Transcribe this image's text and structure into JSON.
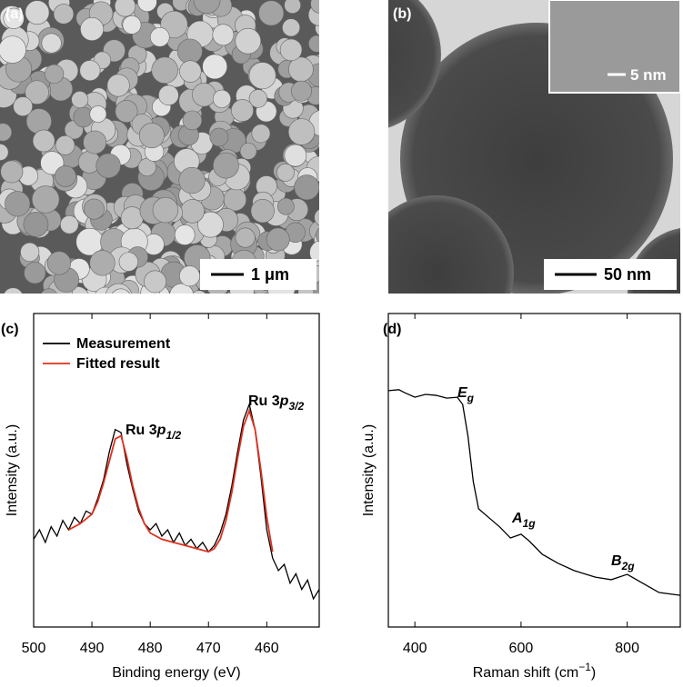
{
  "panels": [
    {
      "label": "(a)",
      "scale_bar": "1 μm"
    },
    {
      "label": "(b)",
      "scale_bar": "50 nm",
      "inset_scale_bar": "5 nm"
    }
  ],
  "chart_data": [
    {
      "type": "line",
      "panel_label": "(c)",
      "xlabel": "Binding energy (eV)",
      "ylabel": "Intensity (a.u.)",
      "xlim": [
        500,
        451
      ],
      "xticks": [
        500,
        490,
        480,
        470,
        460
      ],
      "ylim": [
        0,
        100
      ],
      "legend": "upper-left",
      "series": [
        {
          "name": "Measurement",
          "color": "#000000",
          "x": [
            500,
            499,
            498,
            497,
            496,
            495,
            494,
            493,
            492,
            491,
            490,
            489,
            488,
            487,
            486,
            485,
            484,
            483,
            482,
            481,
            480,
            479,
            478,
            477,
            476,
            475,
            474,
            473,
            472,
            471,
            470,
            469,
            468,
            467,
            466,
            465,
            464,
            463,
            462,
            461,
            460,
            459,
            458,
            457,
            456,
            455,
            454,
            453,
            452,
            451
          ],
          "values": [
            28,
            31,
            27,
            32,
            29,
            34,
            31,
            35,
            33,
            37,
            36,
            41,
            47,
            56,
            63,
            62,
            52,
            44,
            37,
            33,
            31,
            33,
            29,
            31,
            27,
            30,
            26,
            28,
            25,
            27,
            24,
            26,
            30,
            36,
            45,
            56,
            66,
            71,
            63,
            48,
            31,
            22,
            18,
            20,
            14,
            17,
            12,
            15,
            9,
            12
          ]
        },
        {
          "name": "Fitted result",
          "color": "#e0301e",
          "x": [
            494,
            492,
            490,
            489,
            488,
            487,
            486,
            485,
            484,
            483,
            482,
            481,
            480,
            478,
            476,
            474,
            472,
            470,
            469,
            468,
            467,
            466,
            465,
            464,
            463,
            462,
            461,
            460,
            459
          ],
          "values": [
            31,
            33,
            36,
            40,
            46,
            53,
            60,
            61,
            54,
            45,
            38,
            33,
            30,
            28,
            27,
            26,
            25,
            24,
            25,
            28,
            34,
            43,
            54,
            64,
            69,
            63,
            50,
            35,
            24
          ]
        }
      ],
      "annotations": [
        {
          "text": "Ru 3",
          "italic": "p",
          "sub": "1/2"
        },
        {
          "text": "Ru 3",
          "italic": "p",
          "sub": "3/2"
        }
      ]
    },
    {
      "type": "line",
      "panel_label": "(d)",
      "xlabel": {
        "text": "Raman shift (cm",
        "sup": "−1",
        "end": ")"
      },
      "ylabel": "Intensity (a.u.)",
      "xlim": [
        350,
        900
      ],
      "xticks": [
        400,
        600,
        800
      ],
      "ylim": [
        0,
        100
      ],
      "series": [
        {
          "color": "#000000",
          "x": [
            350,
            370,
            380,
            400,
            420,
            440,
            460,
            480,
            490,
            500,
            510,
            520,
            540,
            560,
            580,
            600,
            615,
            640,
            670,
            700,
            740,
            770,
            800,
            830,
            860,
            900
          ],
          "values": [
            75.4,
            75.7,
            74.8,
            73.3,
            74.2,
            73.9,
            73.0,
            73.3,
            71.0,
            60.9,
            46.4,
            37.7,
            34.8,
            31.9,
            28.4,
            29.6,
            27.5,
            23.2,
            20.3,
            18.0,
            15.9,
            15.1,
            16.8,
            13.9,
            11.0,
            10.1
          ]
        }
      ],
      "annotations": [
        {
          "italic": "E",
          "sub": "g"
        },
        {
          "italic": "A",
          "sub": "1g"
        },
        {
          "italic": "B",
          "sub": "2g"
        }
      ]
    }
  ]
}
